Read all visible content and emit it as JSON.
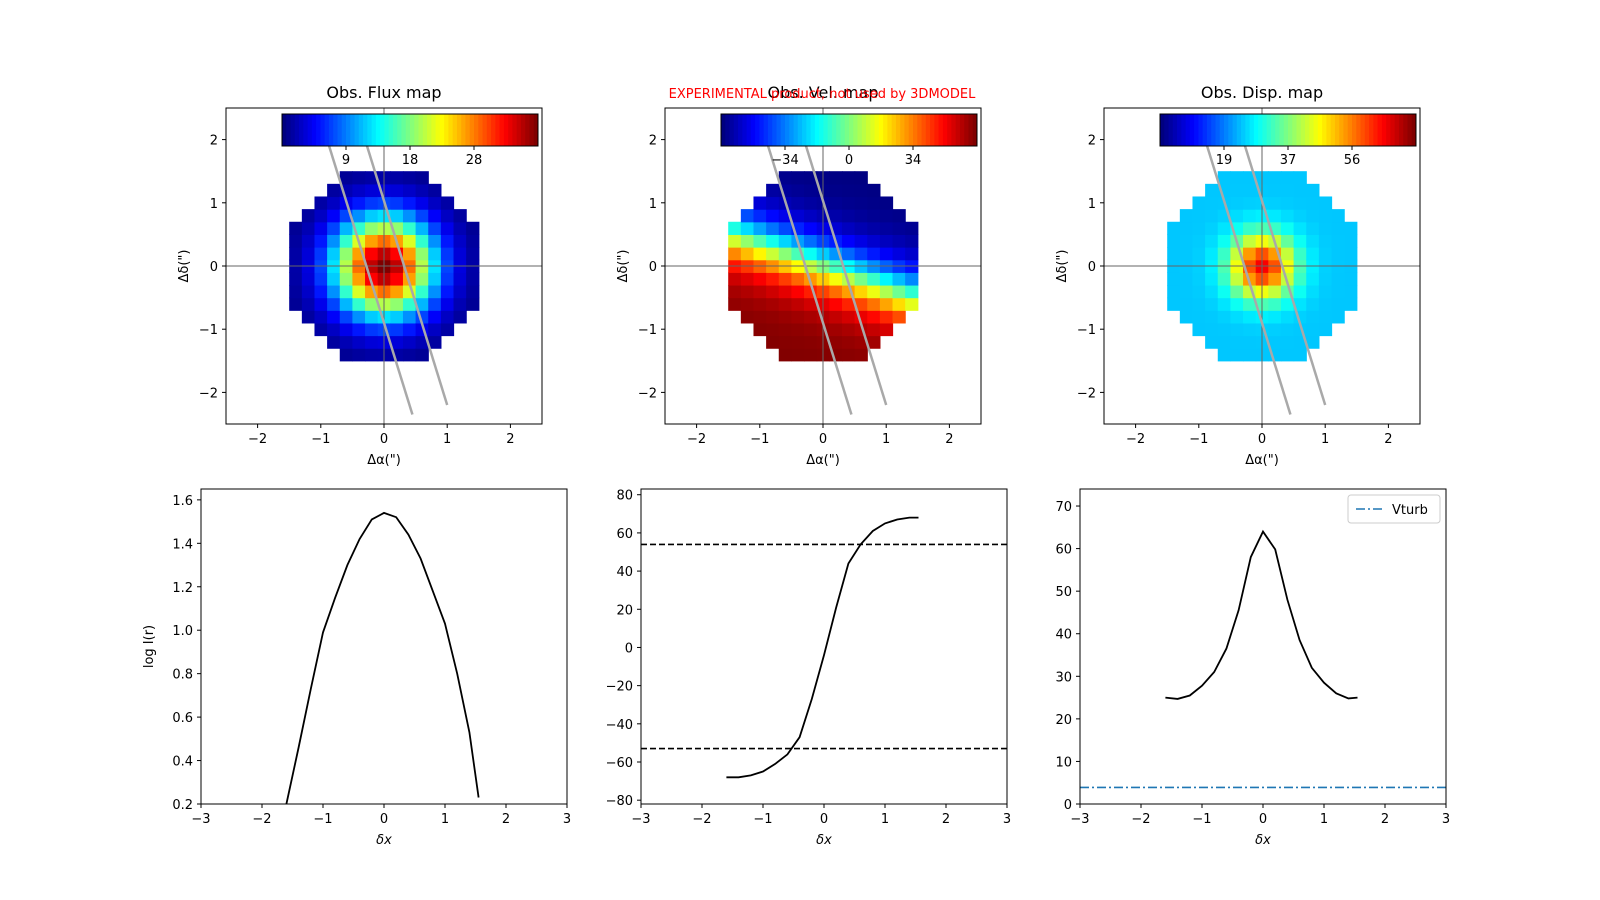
{
  "banner": {
    "text": "EXPERIMENTAL product, not used by 3DMODEL",
    "color": "#ff0000"
  },
  "chart_data": [
    {
      "type": "heatmap",
      "title": "Obs. Flux map",
      "xlabel": "Δα(\")",
      "ylabel": "Δδ(\")",
      "xlim": [
        -2.5,
        2.5
      ],
      "ylim": [
        -2.5,
        2.5
      ],
      "xticks": [
        "−2",
        "−1",
        "0",
        "1",
        "2"
      ],
      "yticks": [
        "2",
        "1",
        "0",
        "−1",
        "−2"
      ],
      "colormap": "jet",
      "colorbar_ticks": [
        "9",
        "18",
        "28"
      ],
      "field": "flux",
      "aperture_radius": 1.55,
      "center": [
        0.0,
        0.0
      ],
      "value_range": [
        0,
        38
      ],
      "slit_lines": [
        [
          [
            -0.9,
            2.0
          ],
          [
            0.45,
            -2.35
          ]
        ],
        [
          [
            -0.3,
            2.0
          ],
          [
            1.0,
            -2.2
          ]
        ]
      ],
      "grid": false
    },
    {
      "type": "heatmap",
      "title": "Obs. Vel. map",
      "xlabel": "Δα(\")",
      "ylabel": "Δδ(\")",
      "xlim": [
        -2.5,
        2.5
      ],
      "ylim": [
        -2.5,
        2.5
      ],
      "xticks": [
        "−2",
        "−1",
        "0",
        "1",
        "2"
      ],
      "yticks": [
        "2",
        "1",
        "0",
        "−1",
        "−2"
      ],
      "colormap": "jet",
      "colorbar_ticks": [
        "−34",
        "0",
        "34"
      ],
      "field": "velocity",
      "aperture_radius": 1.55,
      "center": [
        0.0,
        0.0
      ],
      "value_range": [
        -68,
        68
      ],
      "slit_lines": [
        [
          [
            -0.9,
            2.0
          ],
          [
            0.45,
            -2.35
          ]
        ],
        [
          [
            -0.3,
            2.0
          ],
          [
            1.0,
            -2.2
          ]
        ]
      ],
      "grid": false
    },
    {
      "type": "heatmap",
      "title": "Obs. Disp. map",
      "xlabel": "Δα(\")",
      "ylabel": "Δδ(\")",
      "xlim": [
        -2.5,
        2.5
      ],
      "ylim": [
        -2.5,
        2.5
      ],
      "xticks": [
        "−2",
        "−1",
        "0",
        "1",
        "2"
      ],
      "yticks": [
        "2",
        "1",
        "0",
        "−1",
        "−2"
      ],
      "colormap": "jet",
      "colorbar_ticks": [
        "19",
        "37",
        "56"
      ],
      "field": "dispersion",
      "aperture_radius": 1.55,
      "center": [
        0.0,
        0.0
      ],
      "value_range": [
        0,
        75
      ],
      "slit_lines": [
        [
          [
            -0.9,
            2.0
          ],
          [
            0.45,
            -2.35
          ]
        ],
        [
          [
            -0.3,
            2.0
          ],
          [
            1.0,
            -2.2
          ]
        ]
      ],
      "grid": false
    },
    {
      "type": "line",
      "title": "",
      "xlabel": "δx",
      "ylabel": "log I(r)",
      "xlim": [
        -3,
        3
      ],
      "ylim": [
        0.2,
        1.65
      ],
      "xticks": [
        -3,
        -2,
        -1,
        0,
        1,
        2,
        3
      ],
      "yticks": [
        0.2,
        0.4,
        0.6,
        0.8,
        1.0,
        1.2,
        1.4,
        1.6
      ],
      "ytick_format": "1dp",
      "series": [
        {
          "color": "#000000",
          "style": "solid",
          "x": [
            -1.6,
            -1.4,
            -1.2,
            -1.0,
            -0.8,
            -0.6,
            -0.4,
            -0.2,
            0.0,
            0.2,
            0.4,
            0.6,
            0.8,
            1.0,
            1.2,
            1.4,
            1.55
          ],
          "y": [
            0.2,
            0.46,
            0.73,
            0.99,
            1.15,
            1.3,
            1.42,
            1.51,
            1.54,
            1.52,
            1.44,
            1.33,
            1.18,
            1.03,
            0.8,
            0.53,
            0.23
          ]
        }
      ],
      "grid": false
    },
    {
      "type": "line",
      "title": "",
      "xlabel": "δx",
      "ylabel": "",
      "xlim": [
        -3,
        3
      ],
      "ylim": [
        -82,
        83
      ],
      "xticks": [
        -3,
        -2,
        -1,
        0,
        1,
        2,
        3
      ],
      "yticks": [
        -80,
        -60,
        -40,
        -20,
        0,
        20,
        40,
        60,
        80
      ],
      "ytick_format": "int",
      "series": [
        {
          "color": "#000000",
          "style": "solid",
          "x": [
            -1.6,
            -1.4,
            -1.2,
            -1.0,
            -0.8,
            -0.6,
            -0.4,
            -0.2,
            0.0,
            0.2,
            0.4,
            0.6,
            0.8,
            1.0,
            1.2,
            1.4,
            1.55
          ],
          "y": [
            -68,
            -68,
            -67,
            -65,
            -61,
            -56,
            -47,
            -27,
            -4,
            21,
            44,
            54,
            61,
            65,
            67,
            68,
            68
          ]
        },
        {
          "color": "#000000",
          "style": "dashed",
          "x": [
            -3,
            3
          ],
          "y": [
            54,
            54
          ]
        },
        {
          "color": "#000000",
          "style": "dashed",
          "x": [
            -3,
            3
          ],
          "y": [
            -53,
            -53
          ]
        }
      ],
      "grid": false
    },
    {
      "type": "line",
      "title": "",
      "xlabel": "δx",
      "ylabel": "",
      "xlim": [
        -3,
        3
      ],
      "ylim": [
        0,
        74
      ],
      "xticks": [
        -3,
        -2,
        -1,
        0,
        1,
        2,
        3
      ],
      "yticks": [
        0,
        10,
        20,
        30,
        40,
        50,
        60,
        70
      ],
      "ytick_format": "int",
      "legend_position": "top-right",
      "series": [
        {
          "color": "#000000",
          "style": "solid",
          "x": [
            -1.6,
            -1.4,
            -1.2,
            -1.0,
            -0.8,
            -0.6,
            -0.4,
            -0.2,
            0.0,
            0.2,
            0.4,
            0.6,
            0.8,
            1.0,
            1.2,
            1.4,
            1.55
          ],
          "y": [
            25,
            24.7,
            25.5,
            27.8,
            31,
            36.5,
            45.5,
            58,
            64,
            59.8,
            48,
            38.5,
            32,
            28.5,
            26,
            24.8,
            25
          ]
        },
        {
          "name": "Vturb",
          "color": "#1f77b4",
          "style": "dashdot",
          "x": [
            -3,
            3
          ],
          "y": [
            3.9,
            3.9
          ]
        }
      ],
      "grid": false
    }
  ]
}
